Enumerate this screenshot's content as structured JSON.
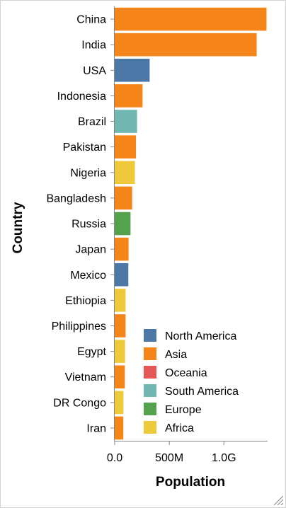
{
  "chart_data": {
    "type": "bar",
    "orientation": "horizontal",
    "xlabel": "Population",
    "ylabel": "Country",
    "xlim": [
      0,
      1400000000
    ],
    "x_ticks": [
      {
        "value": 0,
        "label": "0.0"
      },
      {
        "value": 500000000,
        "label": "500M"
      },
      {
        "value": 1000000000,
        "label": "1.0G"
      }
    ],
    "grid": false,
    "legend_position": "bottom-right",
    "colors": {
      "North America": "#4c78a8",
      "Asia": "#f58518",
      "Oceania": "#e45756",
      "South America": "#72b7b2",
      "Europe": "#54a24b",
      "Africa": "#eeca3b"
    },
    "legend": [
      "North America",
      "Asia",
      "Oceania",
      "South America",
      "Europe",
      "Africa"
    ],
    "categories": [
      "China",
      "India",
      "USA",
      "Indonesia",
      "Brazil",
      "Pakistan",
      "Nigeria",
      "Bangladesh",
      "Russia",
      "Japan",
      "Mexico",
      "Ethiopia",
      "Philippines",
      "Egypt",
      "Vietnam",
      "DR Congo",
      "Iran"
    ],
    "values": [
      1390000000,
      1300000000,
      320000000,
      255000000,
      205000000,
      195000000,
      185000000,
      160000000,
      145000000,
      127000000,
      125000000,
      100000000,
      100000000,
      95000000,
      93000000,
      80000000,
      79000000
    ],
    "continent": [
      "Asia",
      "Asia",
      "North America",
      "Asia",
      "South America",
      "Asia",
      "Africa",
      "Asia",
      "Europe",
      "Asia",
      "North America",
      "Africa",
      "Asia",
      "Africa",
      "Asia",
      "Africa",
      "Asia"
    ]
  }
}
